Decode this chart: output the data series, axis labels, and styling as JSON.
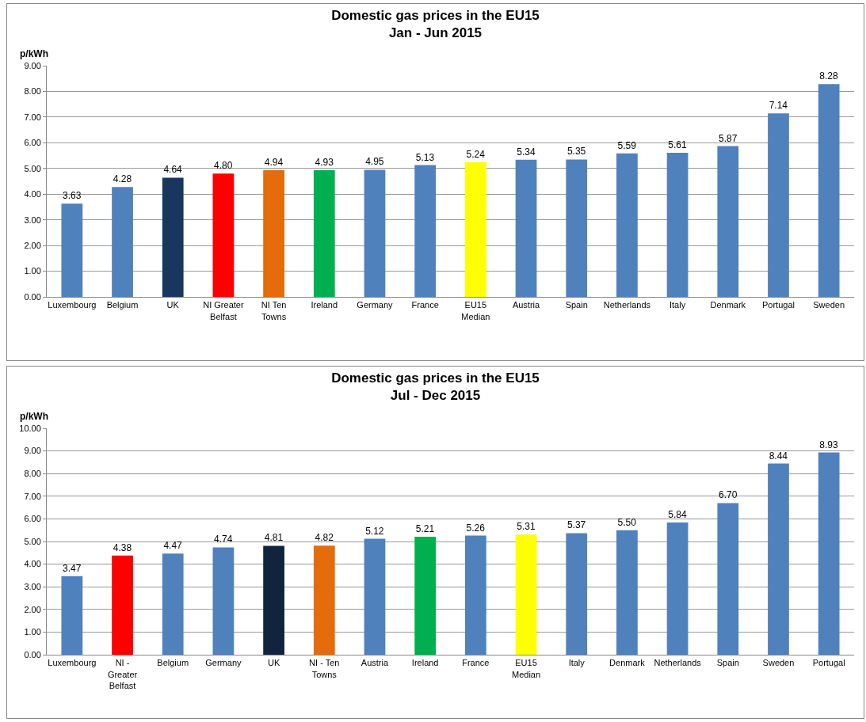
{
  "chart_data": [
    {
      "type": "bar",
      "title": "Domestic gas prices in the EU15\nJan - Jun 2015",
      "ylabel": "p/kWh",
      "categories": [
        "Luxembourg",
        "Belgium",
        "UK",
        "NI Greater Belfast",
        "NI Ten Towns",
        "Ireland",
        "Germany",
        "France",
        "EU15 Median",
        "Austria",
        "Spain",
        "Netherlands",
        "Italy",
        "Denmark",
        "Portugal",
        "Sweden"
      ],
      "values": [
        3.63,
        4.28,
        4.64,
        4.8,
        4.94,
        4.93,
        4.95,
        5.13,
        5.24,
        5.34,
        5.35,
        5.59,
        5.61,
        5.87,
        7.14,
        8.28
      ],
      "value_labels": [
        "3.63",
        "4.28",
        "4.64",
        "4.80",
        "4.94",
        "4.93",
        "4.95",
        "5.13",
        "5.24",
        "5.34",
        "5.35",
        "5.59",
        "5.61",
        "5.87",
        "7.14",
        "8.28"
      ],
      "colors": [
        "#4f81bd",
        "#4f81bd",
        "#17375e",
        "#ff0000",
        "#e46c0a",
        "#00b050",
        "#4f81bd",
        "#4f81bd",
        "#ffff00",
        "#4f81bd",
        "#4f81bd",
        "#4f81bd",
        "#4f81bd",
        "#4f81bd",
        "#4f81bd",
        "#4f81bd"
      ],
      "ylim": [
        0,
        9
      ],
      "yticks": [
        {
          "value": 0,
          "label": "0.00"
        },
        {
          "value": 1,
          "label": "1.00"
        },
        {
          "value": 2,
          "label": "2.00"
        },
        {
          "value": 3,
          "label": "3.00"
        },
        {
          "value": 4,
          "label": "4.00"
        },
        {
          "value": 5,
          "label": "5.00"
        },
        {
          "value": 6,
          "label": "6.00"
        },
        {
          "value": 7,
          "label": "7.00"
        },
        {
          "value": 8,
          "label": "8.00"
        },
        {
          "value": 9,
          "label": "9.00"
        }
      ],
      "grid": "y"
    },
    {
      "type": "bar",
      "title": "Domestic gas prices in the EU15\nJul - Dec 2015",
      "ylabel": "p/kWh",
      "categories": [
        "Luxembourg",
        "NI - Greater Belfast",
        "Belgium",
        "Germany",
        "UK",
        "NI - Ten Towns",
        "Austria",
        "Ireland",
        "France",
        "EU15 Median",
        "Italy",
        "Denmark",
        "Netherlands",
        "Spain",
        "Sweden",
        "Portugal"
      ],
      "values": [
        3.47,
        4.38,
        4.47,
        4.74,
        4.81,
        4.82,
        5.12,
        5.21,
        5.26,
        5.31,
        5.37,
        5.5,
        5.84,
        6.7,
        8.44,
        8.93
      ],
      "value_labels": [
        "3.47",
        "4.38",
        "4.47",
        "4.74",
        "4.81",
        "4.82",
        "5.12",
        "5.21",
        "5.26",
        "5.31",
        "5.37",
        "5.50",
        "5.84",
        "6.70",
        "8.44",
        "8.93"
      ],
      "colors": [
        "#4f81bd",
        "#ff0000",
        "#4f81bd",
        "#4f81bd",
        "#10243e",
        "#e46c0a",
        "#4f81bd",
        "#00b050",
        "#4f81bd",
        "#ffff00",
        "#4f81bd",
        "#4f81bd",
        "#4f81bd",
        "#4f81bd",
        "#4f81bd",
        "#4f81bd"
      ],
      "ylim": [
        0,
        10
      ],
      "yticks": [
        {
          "value": 0,
          "label": "0.00"
        },
        {
          "value": 1,
          "label": "1.00"
        },
        {
          "value": 2,
          "label": "2.00"
        },
        {
          "value": 3,
          "label": "3.00"
        },
        {
          "value": 4,
          "label": "4.00"
        },
        {
          "value": 5,
          "label": "5.00"
        },
        {
          "value": 6,
          "label": "6.00"
        },
        {
          "value": 7,
          "label": "7.00"
        },
        {
          "value": 8,
          "label": "8.00"
        },
        {
          "value": 9,
          "label": "9.00"
        },
        {
          "value": 10,
          "label": "10.00"
        }
      ],
      "grid": "y"
    }
  ]
}
